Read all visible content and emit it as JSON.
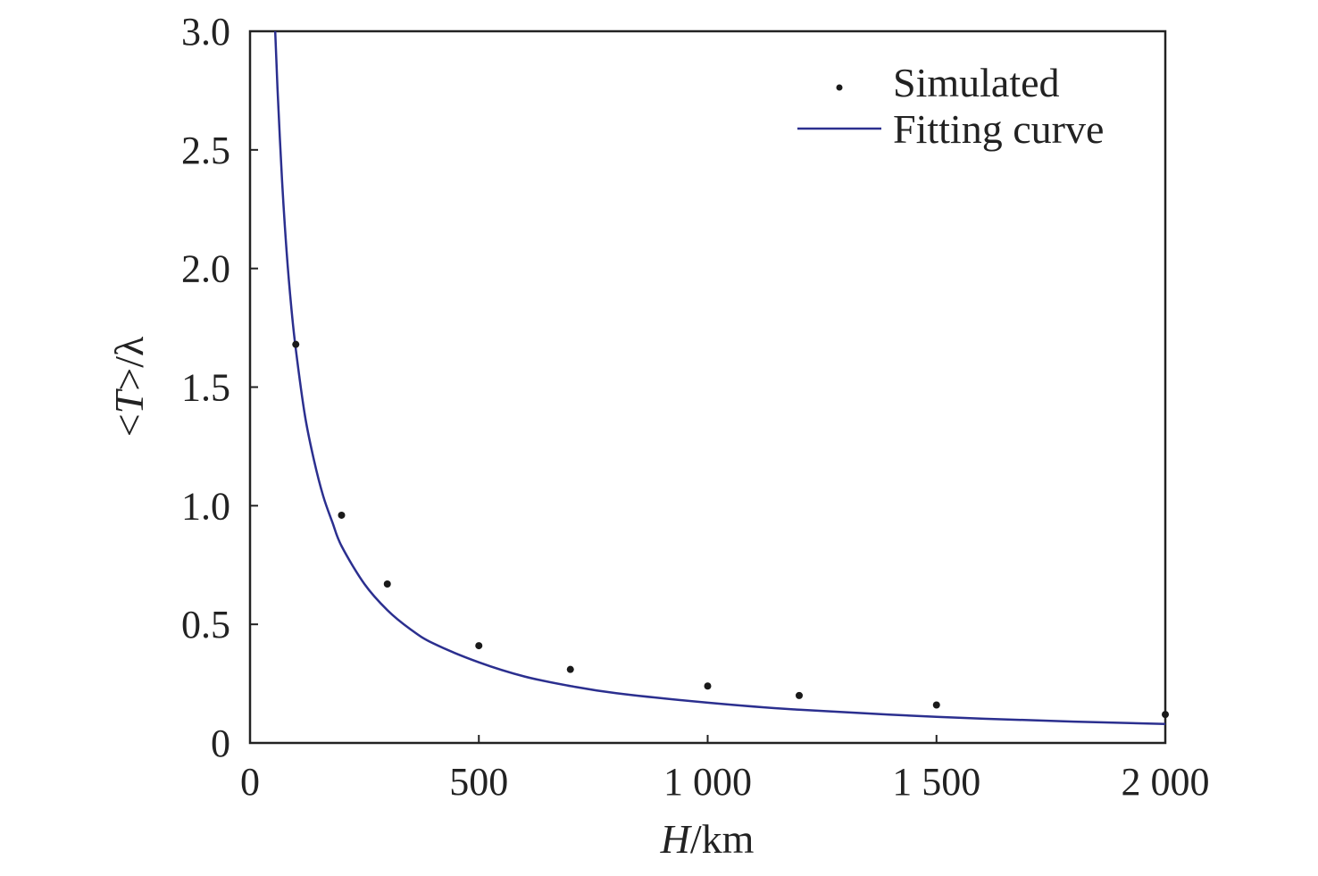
{
  "chart_data": {
    "type": "scatter",
    "xlabel": {
      "italic": "H",
      "rest": "/km"
    },
    "ylabel": {
      "pre": "<",
      "italic": "T",
      "post": ">/λ"
    },
    "xlim": [
      0,
      2000
    ],
    "ylim": [
      0,
      3.0
    ],
    "x_ticks": [
      {
        "value": 0,
        "label": "0"
      },
      {
        "value": 500,
        "label": "500"
      },
      {
        "value": 1000,
        "label": "1 000"
      },
      {
        "value": 1500,
        "label": "1 500"
      },
      {
        "value": 2000,
        "label": "2 000"
      }
    ],
    "y_ticks": [
      {
        "value": 0,
        "label": "0"
      },
      {
        "value": 0.5,
        "label": "0.5"
      },
      {
        "value": 1.0,
        "label": "1.0"
      },
      {
        "value": 1.5,
        "label": "1.5"
      },
      {
        "value": 2.0,
        "label": "2.0"
      },
      {
        "value": 2.5,
        "label": "2.5"
      },
      {
        "value": 3.0,
        "label": "3.0"
      }
    ],
    "grid": false,
    "legend_position": "top-right",
    "series": [
      {
        "name": "Simulated",
        "kind": "markers",
        "color": "#1a1a1a",
        "x": [
          100,
          200,
          300,
          500,
          700,
          1000,
          1200,
          1500,
          2000
        ],
        "y": [
          1.68,
          0.96,
          0.67,
          0.41,
          0.31,
          0.24,
          0.2,
          0.16,
          0.12
        ]
      },
      {
        "name": "Fitting curve",
        "kind": "line",
        "color": "#2b2f8f",
        "x": [
          55,
          60,
          70,
          80,
          90,
          100,
          120,
          140,
          160,
          180,
          200,
          250,
          300,
          350,
          400,
          500,
          600,
          700,
          800,
          1000,
          1200,
          1500,
          1800,
          2000
        ],
        "y": [
          3.0,
          2.76,
          2.37,
          2.07,
          1.84,
          1.66,
          1.38,
          1.19,
          1.04,
          0.93,
          0.83,
          0.67,
          0.56,
          0.48,
          0.42,
          0.34,
          0.28,
          0.24,
          0.21,
          0.17,
          0.14,
          0.11,
          0.09,
          0.08
        ]
      }
    ]
  }
}
